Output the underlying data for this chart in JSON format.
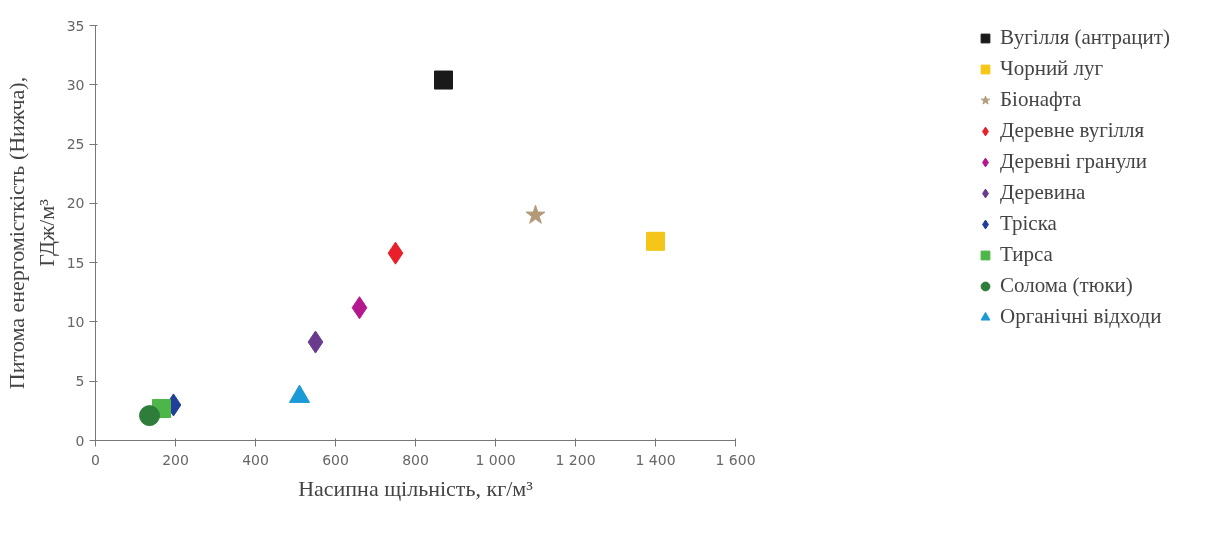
{
  "chart_data": {
    "type": "scatter",
    "xlabel": "Насипна щільність, кг/м³",
    "ylabel": "Питома енергомісткість (Нижча),\nГДж/м³",
    "xlim": [
      0,
      1600
    ],
    "ylim": [
      0,
      35
    ],
    "xticks": [
      0,
      200,
      400,
      600,
      800,
      {
        "value": 1000,
        "label": "1 000"
      },
      {
        "value": 1200,
        "label": "1 200"
      },
      {
        "value": 1400,
        "label": "1 400"
      },
      {
        "value": 1600,
        "label": "1 600"
      }
    ],
    "yticks": [
      0,
      5,
      10,
      15,
      20,
      25,
      30,
      35
    ],
    "grid": false,
    "legend": "right",
    "series": [
      {
        "name": "Вугілля (антрацит)",
        "color": "#1a1a1a",
        "marker": "square",
        "x": [
          870
        ],
        "values": [
          30.4
        ]
      },
      {
        "name": "Чорний луг",
        "color": "#f5c518",
        "marker": "square",
        "x": [
          1400
        ],
        "values": [
          16.8
        ]
      },
      {
        "name": "Біонафта",
        "color": "#b49a78",
        "marker": "star",
        "x": [
          1100
        ],
        "values": [
          19
        ]
      },
      {
        "name": "Деревне вугілля",
        "color": "#e8202a",
        "marker": "diamond",
        "x": [
          750
        ],
        "values": [
          15.8
        ]
      },
      {
        "name": "Деревні гранули",
        "color": "#b5178f",
        "marker": "diamond",
        "x": [
          660
        ],
        "values": [
          11.2
        ]
      },
      {
        "name": "Деревина",
        "color": "#6a3a8c",
        "marker": "diamond",
        "x": [
          550
        ],
        "values": [
          8.3
        ]
      },
      {
        "name": "Тріска",
        "color": "#1f3f9a",
        "marker": "diamond",
        "x": [
          195
        ],
        "values": [
          3.0
        ]
      },
      {
        "name": "Тирса",
        "color": "#4cb648",
        "marker": "square",
        "x": [
          165
        ],
        "values": [
          2.7
        ]
      },
      {
        "name": "Солома (тюки)",
        "color": "#2e7d3a",
        "marker": "circle",
        "x": [
          135
        ],
        "values": [
          2.1
        ]
      },
      {
        "name": "Органічні відходи",
        "color": "#1a9ad6",
        "marker": "triangle",
        "x": [
          510
        ],
        "values": [
          3.7
        ]
      }
    ]
  }
}
